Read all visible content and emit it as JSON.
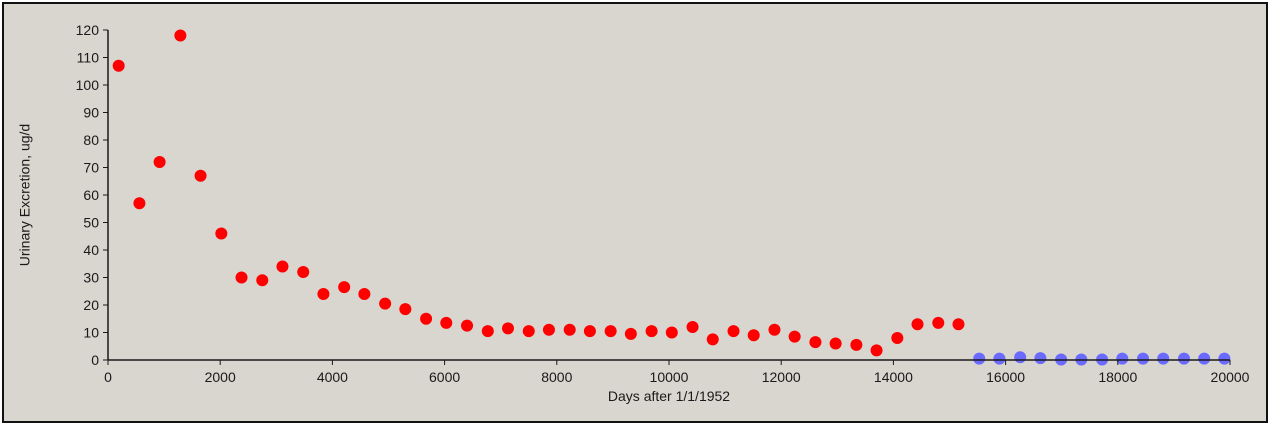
{
  "chart_data": {
    "type": "scatter",
    "title": "",
    "xlabel": "Days after 1/1/1952",
    "ylabel": "Urinary Excretion, ug/d",
    "xlim": [
      0,
      20000
    ],
    "ylim": [
      0,
      120
    ],
    "x_ticks": [
      0,
      2000,
      4000,
      6000,
      8000,
      10000,
      12000,
      14000,
      16000,
      18000,
      20000
    ],
    "y_ticks": [
      0,
      10,
      20,
      30,
      40,
      50,
      60,
      70,
      80,
      90,
      100,
      110,
      120
    ],
    "grid": false,
    "legend": "none",
    "series": [
      {
        "color": "#ff0000",
        "points": [
          [
            190,
            107
          ],
          [
            560,
            57
          ],
          [
            920,
            72
          ],
          [
            1290,
            118
          ],
          [
            1650,
            67
          ],
          [
            2020,
            46
          ],
          [
            2380,
            30
          ],
          [
            2750,
            29
          ],
          [
            3110,
            34
          ],
          [
            3480,
            32
          ],
          [
            3840,
            24
          ],
          [
            4210,
            26.5
          ],
          [
            4570,
            24
          ],
          [
            4940,
            20.5
          ],
          [
            5300,
            18.5
          ],
          [
            5670,
            15
          ],
          [
            6030,
            13.5
          ],
          [
            6400,
            12.5
          ],
          [
            6770,
            10.5
          ],
          [
            7130,
            11.5
          ],
          [
            7500,
            10.5
          ],
          [
            7860,
            11
          ],
          [
            8230,
            11
          ],
          [
            8590,
            10.5
          ],
          [
            8960,
            10.5
          ],
          [
            9320,
            9.5
          ],
          [
            9690,
            10.5
          ],
          [
            10050,
            10
          ],
          [
            10420,
            12
          ],
          [
            10780,
            7.5
          ],
          [
            11150,
            10.5
          ],
          [
            11510,
            9
          ],
          [
            11880,
            11
          ],
          [
            12240,
            8.5
          ],
          [
            12610,
            6.5
          ],
          [
            12970,
            6
          ],
          [
            13340,
            5.5
          ],
          [
            13700,
            3.5
          ],
          [
            14070,
            8
          ],
          [
            14430,
            13
          ],
          [
            14800,
            13.5
          ],
          [
            15160,
            13
          ]
        ]
      },
      {
        "color": "#6a6aff",
        "points": [
          [
            15530,
            0.5
          ],
          [
            15890,
            0.5
          ],
          [
            16260,
            1
          ],
          [
            16620,
            0.7
          ],
          [
            16990,
            0.2
          ],
          [
            17350,
            0.2
          ],
          [
            17720,
            0.2
          ],
          [
            18080,
            0.5
          ],
          [
            18450,
            0.5
          ],
          [
            18810,
            0.5
          ],
          [
            19180,
            0.5
          ],
          [
            19540,
            0.5
          ],
          [
            19900,
            0.5
          ]
        ]
      }
    ]
  }
}
